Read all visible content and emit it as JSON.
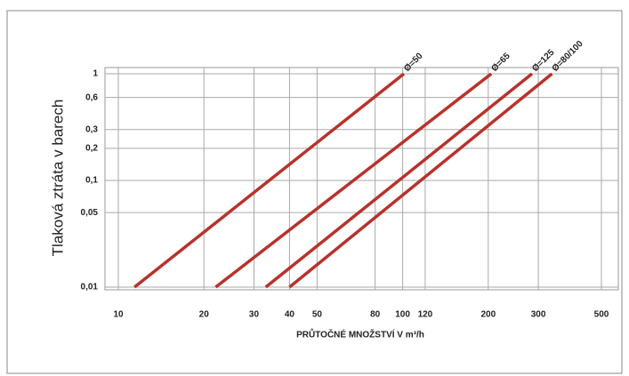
{
  "chart_data": {
    "type": "line",
    "ylabel": "Tlaková ztráta v barech",
    "xlabel": "PRŮTOČNÉ MNOŽSTVÍ V m³/h",
    "xscale": "log",
    "yscale": "log",
    "grid": true,
    "xlim": [
      10,
      500
    ],
    "ylim": [
      0.01,
      1
    ],
    "xticks": [
      10,
      20,
      30,
      40,
      50,
      80,
      100,
      120,
      200,
      300,
      500
    ],
    "yticks": [
      {
        "value": 0.01,
        "label": "0,01"
      },
      {
        "value": 0.05,
        "label": "0,05"
      },
      {
        "value": 0.1,
        "label": "0,1"
      },
      {
        "value": 0.2,
        "label": "0,2"
      },
      {
        "value": 0.3,
        "label": "0,3"
      },
      {
        "value": 0.6,
        "label": "0,6"
      },
      1
    ],
    "series": [
      {
        "name": "Ø=50",
        "color": "#b8322c",
        "x": [
          11.4,
          101
        ],
        "values": [
          0.01,
          1
        ]
      },
      {
        "name": "Ø=65",
        "color": "#b8322c",
        "x": [
          22,
          205
        ],
        "values": [
          0.01,
          1
        ]
      },
      {
        "name": "Ø=125",
        "color": "#b8322c",
        "x": [
          33,
          285
        ],
        "values": [
          0.01,
          1
        ]
      },
      {
        "name": "Ø=80/100",
        "color": "#b8322c",
        "x": [
          40,
          335
        ],
        "values": [
          0.01,
          1
        ]
      }
    ]
  }
}
